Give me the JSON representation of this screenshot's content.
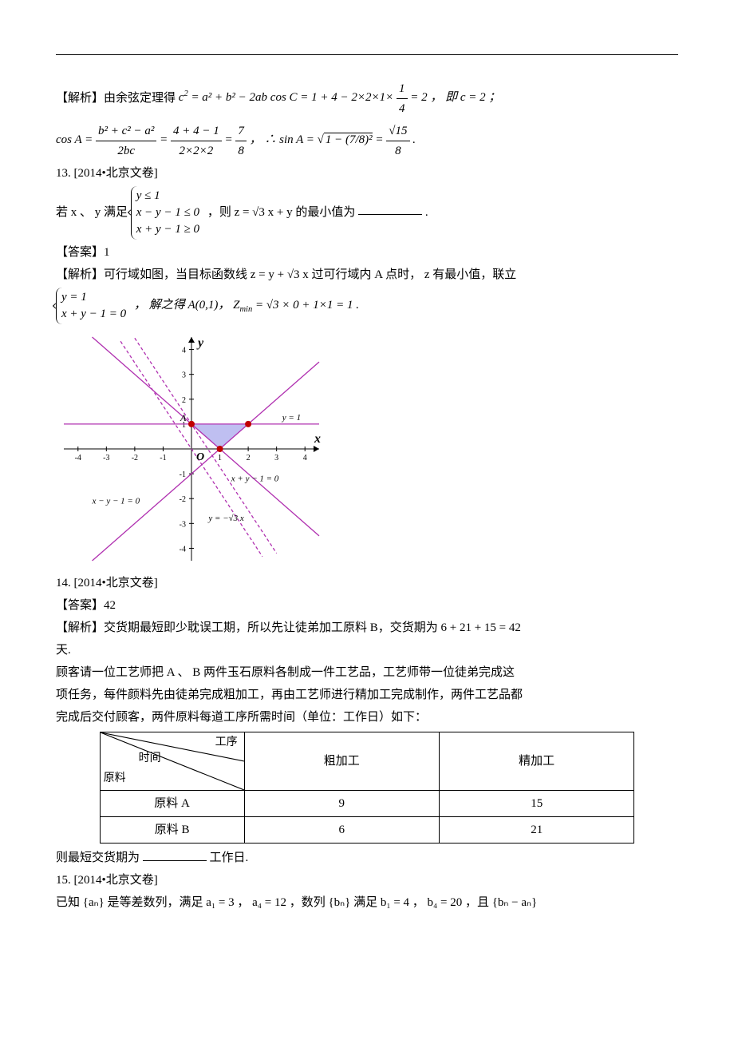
{
  "hr": "",
  "p12": {
    "prefix": "【解析】由余弦定理得 ",
    "eq1_lhs": "c",
    "eq1_sup": "2",
    "eq1_mid": " = a² + b² − 2ab cos C = 1 + 4 − 2×2×1×",
    "eq1_frac_num": "1",
    "eq1_frac_den": "4",
    "eq1_tail": " = 2 ，  即 c = 2 ；",
    "line2_a": "cos A = ",
    "l2_num1": "b² + c² − a²",
    "l2_den1": "2bc",
    "l2_mid1": " = ",
    "l2_num2": "4 + 4 − 1",
    "l2_den2": "2×2×2",
    "l2_mid2": " = ",
    "l2_num3": "7",
    "l2_den3": "8",
    "l2_mid3": " ，  ∴ sin A = ",
    "l2_inner": "1 − (7/8)²",
    "l2_mid4": " = ",
    "l2_num4": "√15",
    "l2_den4": "8",
    "l2_tail": " ."
  },
  "p13": {
    "head": "13. [2014•北京文卷]",
    "prefix": "若 x 、 y 满足 ",
    "c1": "y ≤ 1",
    "c2": "x − y − 1 ≤ 0",
    "c3": "x + y − 1 ≥ 0",
    "mid": " ，则 z = √3 x + y 的最小值为",
    "tail": ".",
    "ans_label": "【答案】",
    "ans": "1",
    "expl_prefix": "【解析】可行域如图，当目标函数线 z = y + √3 x 过可行域内 A 点时， z 有最小值，联立",
    "s1": "y = 1",
    "s2": "x + y − 1 = 0",
    "expl_mid": " ， 解之得 A(0,1)，  Z",
    "expl_sub": "min",
    "expl_tail": " = √3 × 0 + 1×1 = 1 ."
  },
  "chart": {
    "type": "region-plot",
    "xlim": [
      -4.5,
      4.5
    ],
    "ylim": [
      -4.5,
      4.5
    ],
    "xticks": [
      -4,
      -3,
      -2,
      -1,
      1,
      2,
      3,
      4
    ],
    "yticks": [
      -4,
      -3,
      -2,
      -1,
      1,
      2,
      3,
      4
    ],
    "axis_color": "#000000",
    "background": "#ffffff",
    "lines": [
      {
        "label": "y = 1",
        "color": "#b030b0",
        "dash": "",
        "pts": [
          [
            -4.5,
            1
          ],
          [
            4.5,
            1
          ]
        ]
      },
      {
        "label": "x − y − 1 = 0",
        "color": "#b030b0",
        "dash": "",
        "pts": [
          [
            -3.5,
            -4.5
          ],
          [
            4.5,
            3.5
          ]
        ]
      },
      {
        "label": "x + y − 1 = 0",
        "color": "#b030b0",
        "dash": "",
        "pts": [
          [
            -3.5,
            4.5
          ],
          [
            4.5,
            -3.5
          ]
        ]
      },
      {
        "label": "y = −√3 x",
        "color": "#b030b0",
        "dash": "4,3",
        "pts": [
          [
            -2.5,
            4.33
          ],
          [
            2.5,
            -4.33
          ]
        ]
      },
      {
        "label": "",
        "color": "#b030b0",
        "dash": "4,3",
        "pts": [
          [
            -2.0,
            4.46
          ],
          [
            3.0,
            -4.2
          ]
        ]
      }
    ],
    "region": {
      "color": "#7070e0",
      "opacity": 0.45,
      "pts": [
        [
          0,
          1
        ],
        [
          2,
          1
        ],
        [
          1,
          0
        ]
      ]
    },
    "points": [
      {
        "x": 0,
        "y": 1,
        "color": "#c00000"
      },
      {
        "x": 2,
        "y": 1,
        "color": "#c00000"
      },
      {
        "x": 1,
        "y": 0,
        "color": "#c00000"
      }
    ],
    "axis_labels": {
      "x": "x",
      "y": "y",
      "o": "O",
      "A": "A"
    },
    "line_label_fontsize": 11,
    "tick_fontsize": 10
  },
  "p14": {
    "head": "14. [2014•北京文卷]",
    "ans_label": "【答案】",
    "ans": "42",
    "expl1": "【解析】交货期最短即少耽误工期，所以先让徒弟加工原料 B，交货期为 6 + 21 + 15 = 42",
    "expl2": "天.",
    "body1": "顾客请一位工艺师把 A 、 B 两件玉石原料各制成一件工艺品，工艺师带一位徒弟完成这",
    "body2": "项任务，每件颜料先由徒弟完成粗加工，再由工艺师进行精加工完成制作，两件工艺品都",
    "body3": "完成后交付顾客，两件原料每道工序所需时间（单位：工作日）如下：",
    "table": {
      "diag_top": "工序",
      "diag_mid": "时间",
      "diag_bot": "原料",
      "col1": "粗加工",
      "col2": "精加工",
      "rowA_label": "原料 A",
      "rowA_c1": "9",
      "rowA_c2": "15",
      "rowB_label": "原料 B",
      "rowB_c1": "6",
      "rowB_c2": "21"
    },
    "tail_a": "则最短交货期为",
    "tail_b": "工作日."
  },
  "p15": {
    "head": "15. [2014•北京文卷]",
    "body": "已知 {aₙ} 是等差数列，满足 a₁ = 3 ， a₄ = 12 ，数列 {bₙ} 满足 b₁ = 4 ， b₄ = 20 ，且 {bₙ − aₙ}"
  }
}
